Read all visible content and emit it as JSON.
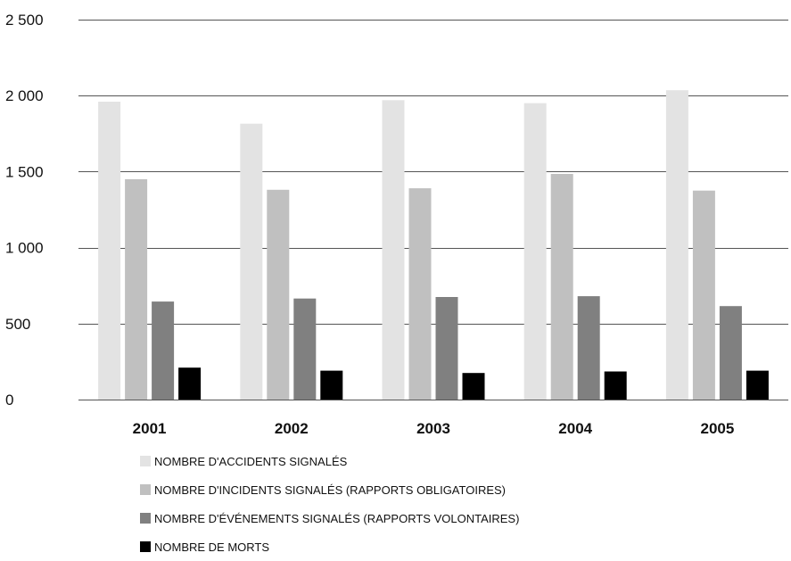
{
  "chart_data": {
    "type": "bar",
    "title": "",
    "xlabel": "",
    "ylabel": "",
    "ylim": [
      0,
      2500
    ],
    "yticks": [
      0,
      500,
      1000,
      1500,
      2000,
      2500
    ],
    "ytick_labels": [
      "0",
      "500",
      "1 000",
      "1 500",
      "2 000",
      "2 500"
    ],
    "categories": [
      "2001",
      "2002",
      "2003",
      "2004",
      "2005"
    ],
    "grid": "horizontal",
    "legend_position": "bottom",
    "series": [
      {
        "name": "NOMBRE D'ACCIDENTS SIGNALÉS",
        "color": "#e3e3e3",
        "values": [
          1960,
          1815,
          1970,
          1950,
          2035
        ]
      },
      {
        "name": "NOMBRE D'INCIDENTS SIGNALÉS (RAPPORTS OBLIGATOIRES)",
        "color": "#c0c0c0",
        "values": [
          1450,
          1380,
          1390,
          1485,
          1375
        ]
      },
      {
        "name": "NOMBRE D'ÉVÉNEMENTS SIGNALÉS (RAPPORTS VOLONTAIRES)",
        "color": "#808080",
        "values": [
          645,
          665,
          675,
          680,
          615
        ]
      },
      {
        "name": "NOMBRE DE MORTS",
        "color": "#000000",
        "values": [
          210,
          190,
          175,
          185,
          190
        ]
      }
    ]
  }
}
